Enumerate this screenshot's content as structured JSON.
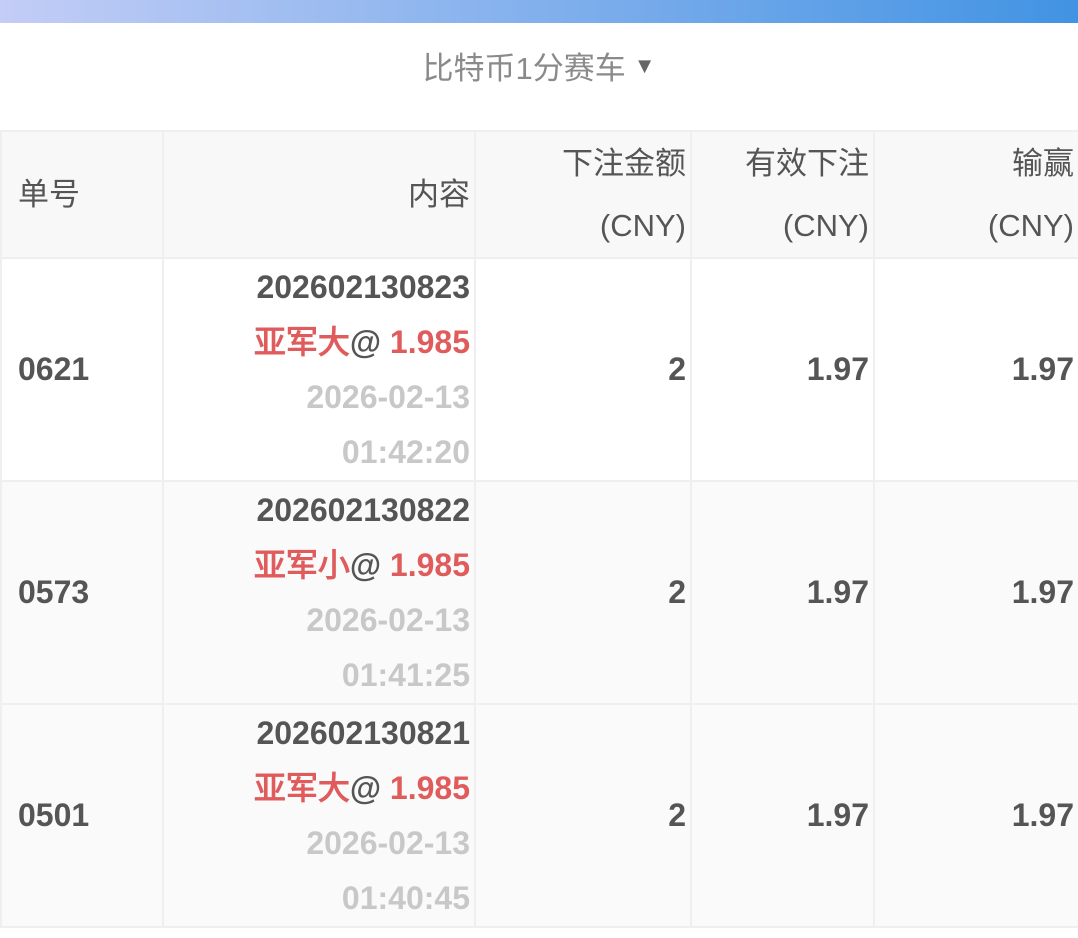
{
  "header": {
    "title": "比特币1分赛车",
    "caret_icon": "caret-down-icon"
  },
  "table": {
    "columns": [
      {
        "l1": "单号",
        "l2": ""
      },
      {
        "l1": "内容",
        "l2": ""
      },
      {
        "l1": "下注金额",
        "l2": "(CNY)"
      },
      {
        "l1": "有效下注",
        "l2": "(CNY)"
      },
      {
        "l1": "输赢",
        "l2": "(CNY)"
      }
    ],
    "rows": [
      {
        "id": "0621",
        "issue": "202602130823",
        "bet": "亚军大",
        "at": "@",
        "odds": "1.985",
        "date": "2026-02-13",
        "time": "01:42:20",
        "amount": "2",
        "valid": "1.97",
        "win": "1.97"
      },
      {
        "id": "0573",
        "issue": "202602130822",
        "bet": "亚军小",
        "at": "@",
        "odds": "1.985",
        "date": "2026-02-13",
        "time": "01:41:25",
        "amount": "2",
        "valid": "1.97",
        "win": "1.97"
      },
      {
        "id": "0501",
        "issue": "202602130821",
        "bet": "亚军大",
        "at": "@",
        "odds": "1.985",
        "date": "2026-02-13",
        "time": "01:40:45",
        "amount": "2",
        "valid": "1.97",
        "win": "1.97"
      }
    ]
  },
  "colors": {
    "accent": "#4193e3",
    "odds_red": "#e05c5c"
  }
}
